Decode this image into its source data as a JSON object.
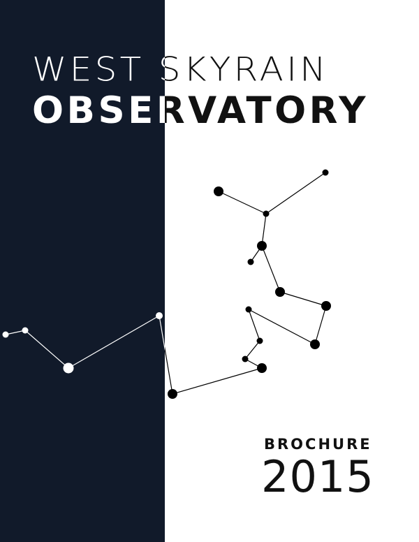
{
  "cover": {
    "title_line1": "WEST SKYRAIN",
    "title_line2": "OBSERVATORY",
    "subtitle": "BROCHURE",
    "year": "2015"
  },
  "colors": {
    "panel": "#111a2a",
    "background": "#ffffff",
    "ink": "#111111",
    "star_on_dark": "#ffffff",
    "star_on_light": "#000000"
  },
  "illustration": {
    "icon": "constellation-icon"
  }
}
